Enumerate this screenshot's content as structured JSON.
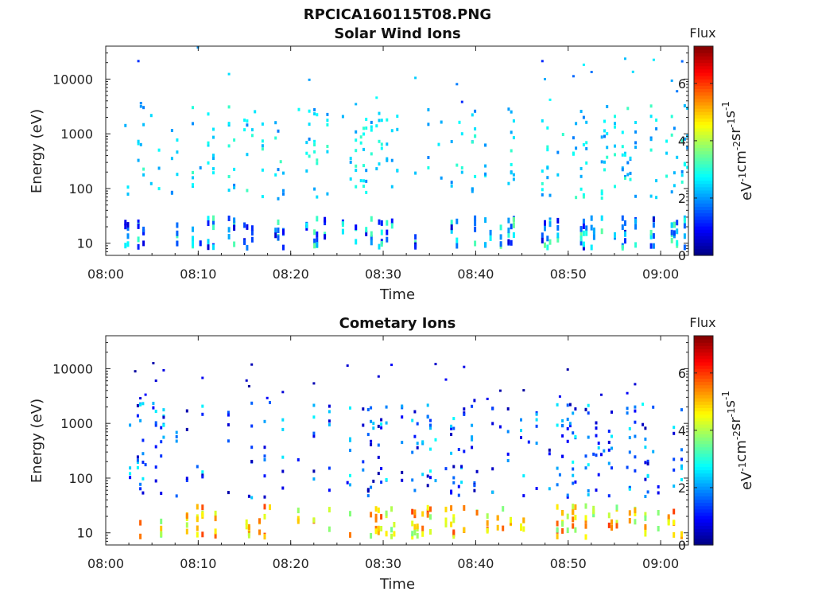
{
  "figure_title": "RPCICA160115T08.PNG",
  "chart_data": [
    {
      "type": "heatmap",
      "title": "Solar Wind Ions",
      "xlabel": "Time",
      "ylabel": "Energy (eV)",
      "x_ticks": [
        "08:00",
        "08:10",
        "08:20",
        "08:30",
        "08:40",
        "08:50",
        "09:00"
      ],
      "xlim": [
        "08:00",
        "09:03"
      ],
      "y_scale": "log",
      "ylim": [
        6,
        40000
      ],
      "y_ticks": [
        10,
        100,
        1000,
        10000
      ],
      "y_tick_labels": [
        "10",
        "100",
        "1000",
        "10000"
      ],
      "colorbar": {
        "title": "Flux",
        "label_parts": [
          "eV",
          "-1",
          "cm",
          "-2",
          "sr",
          "-1",
          "s",
          "-1"
        ],
        "range": [
          0,
          7.3
        ],
        "ticks": [
          0,
          2,
          4,
          6
        ],
        "tick_labels": [
          "0",
          "2",
          "4",
          "6"
        ],
        "colormap": "jet"
      },
      "pattern": {
        "seed": 11,
        "start_minute": 2,
        "end_minute": 63,
        "low_band_energy": [
          8,
          28
        ],
        "low_band_flux": [
          0.5,
          3.5
        ],
        "mid_band_energy": [
          60,
          3000
        ],
        "mid_band_flux": [
          1.8,
          3.2
        ],
        "sparse_energy": [
          3000,
          35000
        ],
        "sparse_flux": [
          1,
          2.8
        ],
        "density": 0.55
      }
    },
    {
      "type": "heatmap",
      "title": "Cometary Ions",
      "xlabel": "Time",
      "ylabel": "Energy (eV)",
      "x_ticks": [
        "08:00",
        "08:10",
        "08:20",
        "08:30",
        "08:40",
        "08:50",
        "09:00"
      ],
      "xlim": [
        "08:00",
        "09:03"
      ],
      "y_scale": "log",
      "ylim": [
        6,
        40000
      ],
      "y_ticks": [
        10,
        100,
        1000,
        10000
      ],
      "y_tick_labels": [
        "10",
        "100",
        "1000",
        "10000"
      ],
      "colorbar": {
        "title": "Flux",
        "label_parts": [
          "eV",
          "-1",
          "cm",
          "-2",
          "sr",
          "-1",
          "s",
          "-1"
        ],
        "range": [
          0,
          7.3
        ],
        "ticks": [
          0,
          2,
          4,
          6
        ],
        "tick_labels": [
          "0",
          "2",
          "4",
          "6"
        ],
        "colormap": "jet"
      },
      "pattern": {
        "seed": 29,
        "start_minute": 2.5,
        "end_minute": 63,
        "low_band_energy": [
          8,
          30
        ],
        "low_band_flux": [
          3.5,
          6.0
        ],
        "mid_band_energy": [
          40,
          2500
        ],
        "mid_band_flux": [
          0.3,
          2.8
        ],
        "sparse_energy": [
          2500,
          12000
        ],
        "sparse_flux": [
          0.2,
          1.0
        ],
        "density": 0.5
      }
    }
  ]
}
